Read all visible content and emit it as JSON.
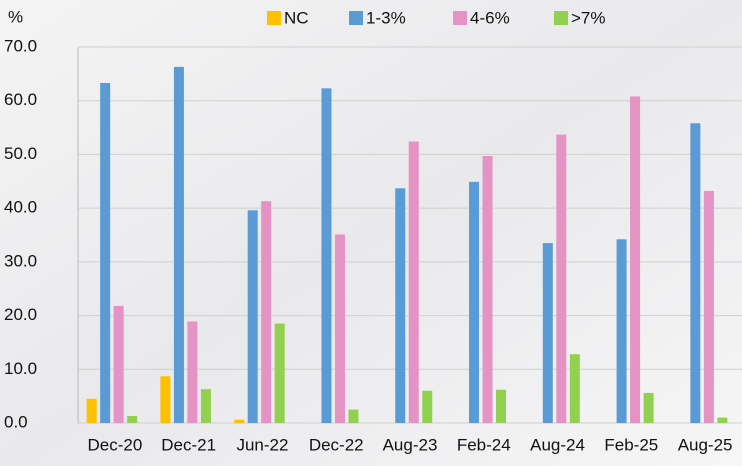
{
  "chart_data": {
    "type": "bar",
    "y_label": "%",
    "categories": [
      "Dec-20",
      "Dec-21",
      "Jun-22",
      "Dec-22",
      "Aug-23",
      "Feb-24",
      "Aug-24",
      "Feb-25",
      "Aug-25"
    ],
    "series": [
      {
        "name": "NC",
        "color": "#ffc000",
        "values": [
          4.5,
          8.7,
          0.6,
          0,
          0,
          0,
          0,
          0,
          0
        ]
      },
      {
        "name": "1-3%",
        "color": "#5b9bd5",
        "values": [
          63.3,
          66.3,
          39.6,
          62.3,
          43.7,
          44.9,
          33.5,
          34.2,
          55.8
        ]
      },
      {
        "name": "4-6%",
        "color": "#e592c4",
        "values": [
          21.8,
          18.9,
          41.3,
          35.1,
          52.4,
          49.7,
          53.7,
          60.8,
          43.2
        ]
      },
      {
        "name": ">7%",
        "color": "#92d050",
        "values": [
          1.3,
          6.3,
          18.5,
          2.5,
          6.0,
          6.2,
          12.8,
          5.6,
          1.0
        ]
      }
    ],
    "ylim": [
      0,
      70
    ],
    "yticks": [
      {
        "value": 0,
        "label": "0.0"
      },
      {
        "value": 10,
        "label": "10.0"
      },
      {
        "value": 20,
        "label": "20.0"
      },
      {
        "value": 30,
        "label": "30.0"
      },
      {
        "value": 40,
        "label": "40.0"
      },
      {
        "value": 50,
        "label": "50.0"
      },
      {
        "value": 60,
        "label": "60.0"
      },
      {
        "value": 70,
        "label": "70.0"
      }
    ],
    "grid": true,
    "legend": "top"
  }
}
